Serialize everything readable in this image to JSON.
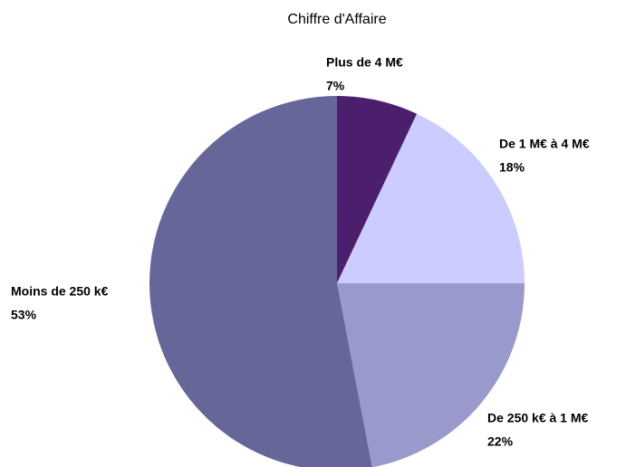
{
  "chart_data": {
    "type": "pie",
    "title": "Chiffre d'Affaire",
    "categories": [
      "Plus de 4 M€",
      "De 1 M€ à 4 M€",
      "De 250 k€ à 1 M€",
      "Moins de 250 k€"
    ],
    "values": [
      7,
      18,
      22,
      53
    ],
    "value_labels": [
      "7%",
      "18%",
      "22%",
      "53%"
    ],
    "colors": [
      "#4c1f6e",
      "#ccccff",
      "#9999cc",
      "#666699"
    ]
  }
}
